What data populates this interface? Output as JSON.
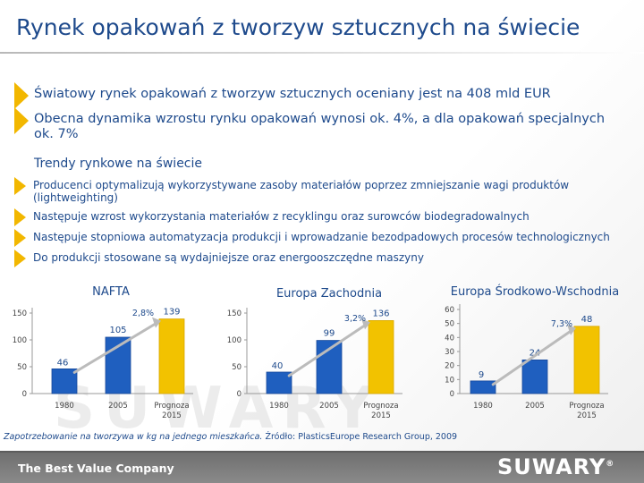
{
  "title": "Rynek opakowań z tworzyw sztucznych na świecie",
  "main_bullets": [
    "Światowy rynek opakowań z tworzyw sztucznych oceniany jest na 408 mld EUR",
    "Obecna dynamika wzrostu rynku opakowań wynosi ok. 4%, a dla opakowań specjalnych ok. 7%"
  ],
  "trends_heading": "Trendy rynkowe na świecie",
  "trend_bullets": [
    "Producenci optymalizują wykorzystywane zasoby materiałów poprzez zmniejszanie wagi produktów (lightweighting)",
    "Następuje wzrost wykorzystania materiałów z recyklingu oraz surowców biodegradowalnych",
    "Następuje stopniowa automatyzacja produkcji i wprowadzanie bezodpadowych procesów technologicznych",
    "Do produkcji stosowane są wydajniejsze oraz energooszczędne maszyny"
  ],
  "watermark": "SUWARY",
  "chart_data": [
    {
      "type": "bar",
      "title": "NAFTA",
      "categories": [
        "1980",
        "2005",
        "Prognoza 2015"
      ],
      "values": [
        46,
        105,
        139
      ],
      "ylim": [
        0,
        150
      ],
      "yticks": [
        "0",
        "50",
        "100",
        "150"
      ],
      "growth_label": "2,8%",
      "colors": [
        "#1f5fbf",
        "#1f5fbf",
        "#f2c200"
      ]
    },
    {
      "type": "bar",
      "title": "Europa Zachodnia",
      "categories": [
        "1980",
        "2005",
        "Prognoza 2015"
      ],
      "values": [
        40,
        99,
        136
      ],
      "ylim": [
        0,
        150
      ],
      "yticks": [
        "0",
        "50",
        "100",
        "150"
      ],
      "growth_label": "3,2%",
      "colors": [
        "#1f5fbf",
        "#1f5fbf",
        "#f2c200"
      ]
    },
    {
      "type": "bar",
      "title": "Europa Środkowo-Wschodnia",
      "categories": [
        "1980",
        "2005",
        "Prognoza 2015"
      ],
      "values": [
        9,
        24,
        48
      ],
      "ylim": [
        0,
        60
      ],
      "yticks": [
        "0",
        "10",
        "20",
        "30",
        "40",
        "50",
        "60"
      ],
      "growth_label": "7,3%",
      "colors": [
        "#1f5fbf",
        "#1f5fbf",
        "#f2c200"
      ]
    }
  ],
  "source": {
    "italic": "Zapotrzebowanie na tworzywa w kg na jednego mieszkańca.",
    "rest": " Źródło: PlasticsEurope Research Group, 2009"
  },
  "footer": {
    "tagline": "The Best Value Company",
    "logo": "SUWARY",
    "logo_mark": "®"
  }
}
